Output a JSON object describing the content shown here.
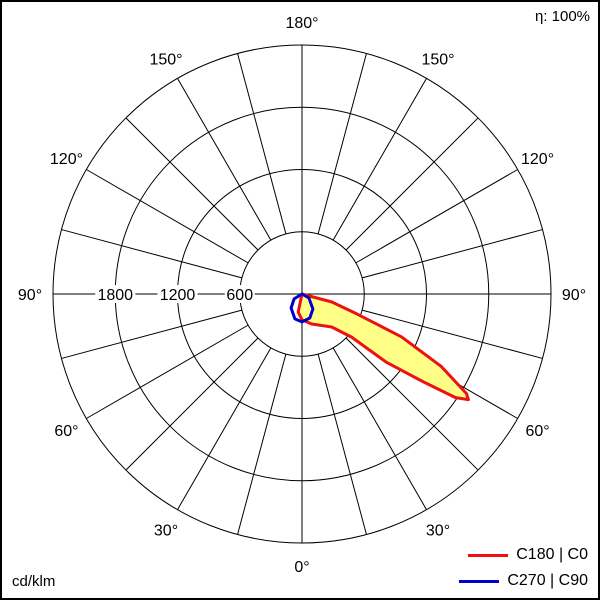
{
  "eta_label": "η: 100%",
  "unit_label": "cd/klm",
  "legend": [
    {
      "label": "C180 | C0",
      "color": "#ee1111"
    },
    {
      "label": "C270 | C90",
      "color": "#0000cc"
    }
  ],
  "chart_data": {
    "type": "polar",
    "unit": "cd/klm",
    "rmax": 2400,
    "ring_values": [
      600,
      1200,
      1800,
      2400
    ],
    "ring_labels": [
      "600",
      "1200",
      "1800"
    ],
    "angle_step_deg": 15,
    "angle_labels": [
      "0°",
      "30°",
      "60°",
      "90°",
      "120°",
      "150°",
      "180°"
    ],
    "fill_color": "#ffff88",
    "series": [
      {
        "name": "C180 | C0",
        "color": "#ee1111",
        "filled": true,
        "points": [
          [
            -90,
            0
          ],
          [
            -12,
            177
          ],
          [
            0,
            250
          ],
          [
            18,
            304
          ],
          [
            42,
            428
          ],
          [
            49,
            633
          ],
          [
            51,
            1045
          ],
          [
            54,
            1428
          ],
          [
            56,
            1786
          ],
          [
            57.6,
            1900
          ],
          [
            58.8,
            1852
          ],
          [
            62.5,
            1515
          ],
          [
            66.7,
            1045
          ],
          [
            70,
            562
          ],
          [
            75,
            298
          ],
          [
            90,
            0
          ]
        ]
      },
      {
        "name": "C270 | C90",
        "color": "#0000cc",
        "filled": false,
        "points": [
          [
            -90,
            0
          ],
          [
            -58,
            90
          ],
          [
            -38,
            171
          ],
          [
            -16,
            250
          ],
          [
            0,
            269
          ],
          [
            18,
            243
          ],
          [
            36,
            179
          ],
          [
            60,
            77
          ],
          [
            90,
            0
          ]
        ]
      }
    ]
  }
}
